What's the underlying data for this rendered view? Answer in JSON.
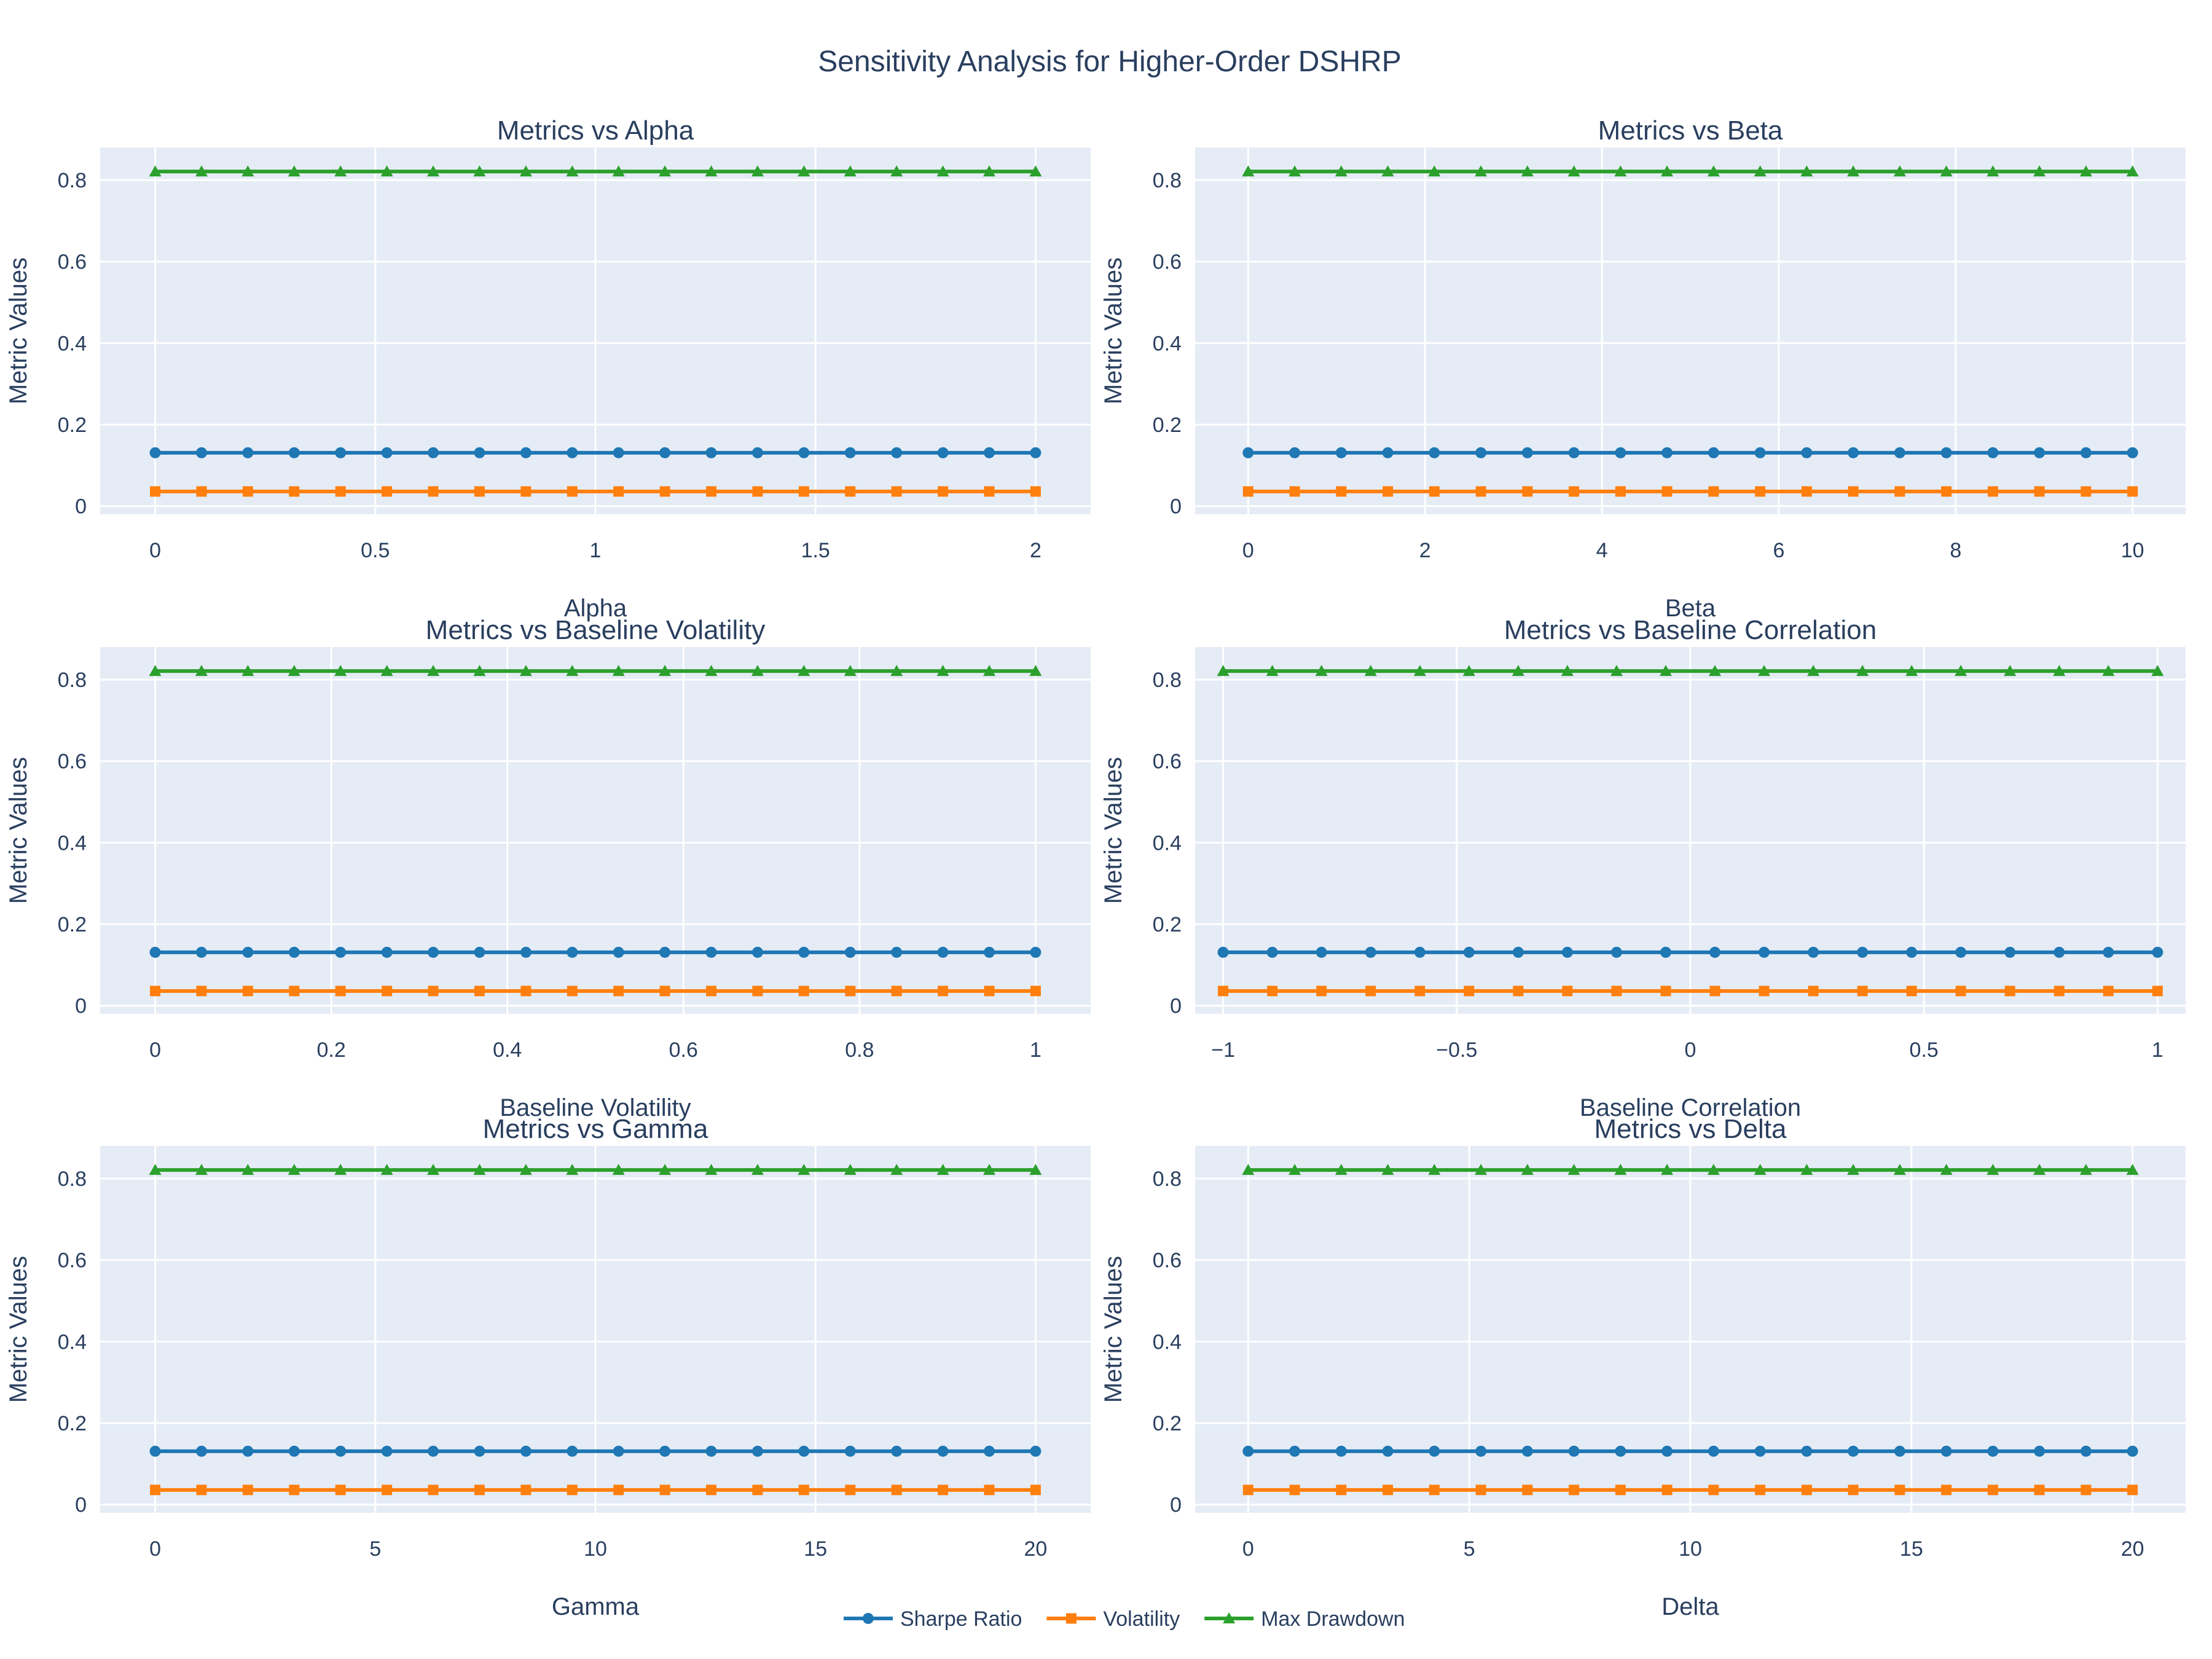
{
  "title": "Sensitivity Analysis for Higher-Order DSHRP",
  "legend": {
    "placement": "bottom-center",
    "orientation": "horizontal",
    "items": [
      {
        "name": "Sharpe Ratio",
        "color": "#1f77b4",
        "marker": "circle"
      },
      {
        "name": "Volatility",
        "color": "#ff7f0e",
        "marker": "square"
      },
      {
        "name": "Max Drawdown",
        "color": "#2ca02c",
        "marker": "triangle-up"
      }
    ]
  },
  "colors": {
    "plot_background": "#e5ecf6",
    "grid": "#ffffff",
    "text": "#2a3f5f"
  },
  "chart_data": [
    {
      "type": "line",
      "title": "Metrics vs Alpha",
      "xlabel": "Alpha",
      "ylabel": "Metric Values",
      "xlim": [
        -0.125,
        2.125
      ],
      "ylim": [
        -0.02,
        0.88
      ],
      "x_ticks": [
        0,
        0.5,
        1,
        1.5,
        2
      ],
      "x_tick_labels": [
        "0",
        "0.5",
        "1",
        "1.5",
        "2"
      ],
      "y_ticks": [
        0,
        0.2,
        0.4,
        0.6,
        0.8
      ],
      "y_tick_labels": [
        "0",
        "0.2",
        "0.4",
        "0.6",
        "0.8"
      ],
      "x": [
        0,
        0.1053,
        0.2105,
        0.3158,
        0.4211,
        0.5263,
        0.6316,
        0.7368,
        0.8421,
        0.9474,
        1.0526,
        1.1579,
        1.2632,
        1.3684,
        1.4737,
        1.5789,
        1.6842,
        1.7895,
        1.8947,
        2
      ],
      "series": [
        {
          "name": "Sharpe Ratio",
          "values": [
            0.131,
            0.131,
            0.131,
            0.131,
            0.131,
            0.131,
            0.131,
            0.131,
            0.131,
            0.131,
            0.131,
            0.131,
            0.131,
            0.131,
            0.131,
            0.131,
            0.131,
            0.131,
            0.131,
            0.131
          ]
        },
        {
          "name": "Volatility",
          "values": [
            0.036,
            0.036,
            0.036,
            0.036,
            0.036,
            0.036,
            0.036,
            0.036,
            0.036,
            0.036,
            0.036,
            0.036,
            0.036,
            0.036,
            0.036,
            0.036,
            0.036,
            0.036,
            0.036,
            0.036
          ]
        },
        {
          "name": "Max Drawdown",
          "values": [
            0.821,
            0.821,
            0.821,
            0.821,
            0.821,
            0.821,
            0.821,
            0.821,
            0.821,
            0.821,
            0.821,
            0.821,
            0.821,
            0.821,
            0.821,
            0.821,
            0.821,
            0.821,
            0.821,
            0.821
          ]
        }
      ]
    },
    {
      "type": "line",
      "title": "Metrics vs Beta",
      "xlabel": "Beta",
      "ylabel": "Metric Values",
      "xlim": [
        -0.6,
        10.6
      ],
      "ylim": [
        -0.02,
        0.88
      ],
      "x_ticks": [
        0,
        2,
        4,
        6,
        8,
        10
      ],
      "x_tick_labels": [
        "0",
        "2",
        "4",
        "6",
        "8",
        "10"
      ],
      "y_ticks": [
        0,
        0.2,
        0.4,
        0.6,
        0.8
      ],
      "y_tick_labels": [
        "0",
        "0.2",
        "0.4",
        "0.6",
        "0.8"
      ],
      "x": [
        0,
        0.5263,
        1.0526,
        1.5789,
        2.1053,
        2.6316,
        3.1579,
        3.6842,
        4.2105,
        4.7368,
        5.2632,
        5.7895,
        6.3158,
        6.8421,
        7.3684,
        7.8947,
        8.4211,
        8.9474,
        9.4737,
        10
      ],
      "series": [
        {
          "name": "Sharpe Ratio",
          "values": [
            0.131,
            0.131,
            0.131,
            0.131,
            0.131,
            0.131,
            0.131,
            0.131,
            0.131,
            0.131,
            0.131,
            0.131,
            0.131,
            0.131,
            0.131,
            0.131,
            0.131,
            0.131,
            0.131,
            0.131
          ]
        },
        {
          "name": "Volatility",
          "values": [
            0.036,
            0.036,
            0.036,
            0.036,
            0.036,
            0.036,
            0.036,
            0.036,
            0.036,
            0.036,
            0.036,
            0.036,
            0.036,
            0.036,
            0.036,
            0.036,
            0.036,
            0.036,
            0.036,
            0.036
          ]
        },
        {
          "name": "Max Drawdown",
          "values": [
            0.821,
            0.821,
            0.821,
            0.821,
            0.821,
            0.821,
            0.821,
            0.821,
            0.821,
            0.821,
            0.821,
            0.821,
            0.821,
            0.821,
            0.821,
            0.821,
            0.821,
            0.821,
            0.821,
            0.821
          ]
        }
      ]
    },
    {
      "type": "line",
      "title": "Metrics vs Baseline Volatility",
      "xlabel": "Baseline Volatility",
      "ylabel": "Metric Values",
      "xlim": [
        -0.0625,
        1.0625
      ],
      "ylim": [
        -0.02,
        0.88
      ],
      "x_ticks": [
        0,
        0.2,
        0.4,
        0.6,
        0.8,
        1
      ],
      "x_tick_labels": [
        "0",
        "0.2",
        "0.4",
        "0.6",
        "0.8",
        "1"
      ],
      "y_ticks": [
        0,
        0.2,
        0.4,
        0.6,
        0.8
      ],
      "y_tick_labels": [
        "0",
        "0.2",
        "0.4",
        "0.6",
        "0.8"
      ],
      "x": [
        0,
        0.0526,
        0.1053,
        0.1579,
        0.2105,
        0.2632,
        0.3158,
        0.3684,
        0.4211,
        0.4737,
        0.5263,
        0.5789,
        0.6316,
        0.6842,
        0.7368,
        0.7895,
        0.8421,
        0.8947,
        0.9474,
        1
      ],
      "series": [
        {
          "name": "Sharpe Ratio",
          "values": [
            0.131,
            0.131,
            0.131,
            0.131,
            0.131,
            0.131,
            0.131,
            0.131,
            0.131,
            0.131,
            0.131,
            0.131,
            0.131,
            0.131,
            0.131,
            0.131,
            0.131,
            0.131,
            0.131,
            0.131
          ]
        },
        {
          "name": "Volatility",
          "values": [
            0.036,
            0.036,
            0.036,
            0.036,
            0.036,
            0.036,
            0.036,
            0.036,
            0.036,
            0.036,
            0.036,
            0.036,
            0.036,
            0.036,
            0.036,
            0.036,
            0.036,
            0.036,
            0.036,
            0.036
          ]
        },
        {
          "name": "Max Drawdown",
          "values": [
            0.821,
            0.821,
            0.821,
            0.821,
            0.821,
            0.821,
            0.821,
            0.821,
            0.821,
            0.821,
            0.821,
            0.821,
            0.821,
            0.821,
            0.821,
            0.821,
            0.821,
            0.821,
            0.821,
            0.821
          ]
        }
      ]
    },
    {
      "type": "line",
      "title": "Metrics vs Baseline Correlation",
      "xlabel": "Baseline Correlation",
      "ylabel": "Metric Values",
      "xlim": [
        -1.06,
        1.06
      ],
      "ylim": [
        -0.02,
        0.88
      ],
      "x_ticks": [
        -1,
        -0.5,
        0,
        0.5,
        1
      ],
      "x_tick_labels": [
        "−1",
        "−0.5",
        "0",
        "0.5",
        "1"
      ],
      "y_ticks": [
        0,
        0.2,
        0.4,
        0.6,
        0.8
      ],
      "y_tick_labels": [
        "0",
        "0.2",
        "0.4",
        "0.6",
        "0.8"
      ],
      "x": [
        -1,
        -0.8947,
        -0.7895,
        -0.6842,
        -0.5789,
        -0.4737,
        -0.3684,
        -0.2632,
        -0.1579,
        -0.0526,
        0.0526,
        0.1579,
        0.2632,
        0.3684,
        0.4737,
        0.5789,
        0.6842,
        0.7895,
        0.8947,
        1
      ],
      "series": [
        {
          "name": "Sharpe Ratio",
          "values": [
            0.131,
            0.131,
            0.131,
            0.131,
            0.131,
            0.131,
            0.131,
            0.131,
            0.131,
            0.131,
            0.131,
            0.131,
            0.131,
            0.131,
            0.131,
            0.131,
            0.131,
            0.131,
            0.131,
            0.131
          ]
        },
        {
          "name": "Volatility",
          "values": [
            0.036,
            0.036,
            0.036,
            0.036,
            0.036,
            0.036,
            0.036,
            0.036,
            0.036,
            0.036,
            0.036,
            0.036,
            0.036,
            0.036,
            0.036,
            0.036,
            0.036,
            0.036,
            0.036,
            0.036
          ]
        },
        {
          "name": "Max Drawdown",
          "values": [
            0.821,
            0.821,
            0.821,
            0.821,
            0.821,
            0.821,
            0.821,
            0.821,
            0.821,
            0.821,
            0.821,
            0.821,
            0.821,
            0.821,
            0.821,
            0.821,
            0.821,
            0.821,
            0.821,
            0.821
          ]
        }
      ]
    },
    {
      "type": "line",
      "title": "Metrics vs Gamma",
      "xlabel": "Gamma",
      "ylabel": "Metric Values",
      "xlim": [
        -1.25,
        21.25
      ],
      "ylim": [
        -0.02,
        0.88
      ],
      "x_ticks": [
        0,
        5,
        10,
        15,
        20
      ],
      "x_tick_labels": [
        "0",
        "5",
        "10",
        "15",
        "20"
      ],
      "y_ticks": [
        0,
        0.2,
        0.4,
        0.6,
        0.8
      ],
      "y_tick_labels": [
        "0",
        "0.2",
        "0.4",
        "0.6",
        "0.8"
      ],
      "x": [
        0,
        1.0526,
        2.1053,
        3.1579,
        4.2105,
        5.2632,
        6.3158,
        7.3684,
        8.4211,
        9.4737,
        10.5263,
        11.5789,
        12.6316,
        13.6842,
        14.7368,
        15.7895,
        16.8421,
        17.8947,
        18.9474,
        20
      ],
      "series": [
        {
          "name": "Sharpe Ratio",
          "values": [
            0.131,
            0.131,
            0.131,
            0.131,
            0.131,
            0.131,
            0.131,
            0.131,
            0.131,
            0.131,
            0.131,
            0.131,
            0.131,
            0.131,
            0.131,
            0.131,
            0.131,
            0.131,
            0.131,
            0.131
          ]
        },
        {
          "name": "Volatility",
          "values": [
            0.036,
            0.036,
            0.036,
            0.036,
            0.036,
            0.036,
            0.036,
            0.036,
            0.036,
            0.036,
            0.036,
            0.036,
            0.036,
            0.036,
            0.036,
            0.036,
            0.036,
            0.036,
            0.036,
            0.036
          ]
        },
        {
          "name": "Max Drawdown",
          "values": [
            0.821,
            0.821,
            0.821,
            0.821,
            0.821,
            0.821,
            0.821,
            0.821,
            0.821,
            0.821,
            0.821,
            0.821,
            0.821,
            0.821,
            0.821,
            0.821,
            0.821,
            0.821,
            0.821,
            0.821
          ]
        }
      ]
    },
    {
      "type": "line",
      "title": "Metrics vs Delta",
      "xlabel": "Delta",
      "ylabel": "Metric Values",
      "xlim": [
        -1.2,
        21.2
      ],
      "ylim": [
        -0.02,
        0.88
      ],
      "x_ticks": [
        0,
        5,
        10,
        15,
        20
      ],
      "x_tick_labels": [
        "0",
        "5",
        "10",
        "15",
        "20"
      ],
      "y_ticks": [
        0,
        0.2,
        0.4,
        0.6,
        0.8
      ],
      "y_tick_labels": [
        "0",
        "0.2",
        "0.4",
        "0.6",
        "0.8"
      ],
      "x": [
        0,
        1.0526,
        2.1053,
        3.1579,
        4.2105,
        5.2632,
        6.3158,
        7.3684,
        8.4211,
        9.4737,
        10.5263,
        11.5789,
        12.6316,
        13.6842,
        14.7368,
        15.7895,
        16.8421,
        17.8947,
        18.9474,
        20
      ],
      "series": [
        {
          "name": "Sharpe Ratio",
          "values": [
            0.131,
            0.131,
            0.131,
            0.131,
            0.131,
            0.131,
            0.131,
            0.131,
            0.131,
            0.131,
            0.131,
            0.131,
            0.131,
            0.131,
            0.131,
            0.131,
            0.131,
            0.131,
            0.131,
            0.131
          ]
        },
        {
          "name": "Volatility",
          "values": [
            0.036,
            0.036,
            0.036,
            0.036,
            0.036,
            0.036,
            0.036,
            0.036,
            0.036,
            0.036,
            0.036,
            0.036,
            0.036,
            0.036,
            0.036,
            0.036,
            0.036,
            0.036,
            0.036,
            0.036
          ]
        },
        {
          "name": "Max Drawdown",
          "values": [
            0.821,
            0.821,
            0.821,
            0.821,
            0.821,
            0.821,
            0.821,
            0.821,
            0.821,
            0.821,
            0.821,
            0.821,
            0.821,
            0.821,
            0.821,
            0.821,
            0.821,
            0.821,
            0.821,
            0.821
          ]
        }
      ]
    }
  ]
}
